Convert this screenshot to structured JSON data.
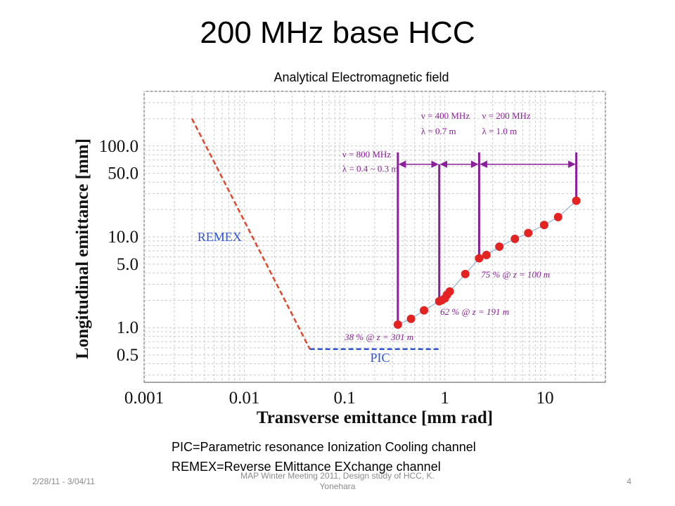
{
  "slide": {
    "title": "200 MHz base HCC",
    "subtitle": "Analytical Electromagnetic field",
    "footnote_1": "PIC=Parametric resonance Ionization Cooling channel",
    "footnote_2": "REMEX=Reverse EMittance EXchange channel",
    "footer_date": "2/28/11 - 3/04/11",
    "footer_center": "MAP Winter Meeting 2011, Design study of HCC, K. Yonehara",
    "page_number": "4"
  },
  "chart_data": {
    "type": "scatter",
    "xlabel": "Transverse emittance [mm rad]",
    "ylabel": "Longitudinal emittance [mm]",
    "xscale": "log",
    "yscale": "log",
    "xlim": [
      0.001,
      40
    ],
    "ylim": [
      0.25,
      400
    ],
    "grid": true,
    "x_tick_labels": [
      "0.001",
      "0.01",
      "0.1",
      "1",
      "10"
    ],
    "x_tick_values": [
      0.001,
      0.01,
      0.1,
      1,
      10
    ],
    "y_tick_labels": [
      "0.5",
      "1.0",
      "5.0",
      "10.0",
      "50.0",
      "100.0"
    ],
    "y_tick_values": [
      0.5,
      1.0,
      5.0,
      10.0,
      50.0,
      100.0
    ],
    "series": [
      {
        "name": "REMEX",
        "style": "dashed",
        "color": "#e8452a",
        "x": [
          0.003,
          0.045
        ],
        "y": [
          200,
          0.58
        ]
      },
      {
        "name": "PIC",
        "style": "dashed",
        "color": "#2f55d4",
        "x": [
          0.045,
          0.9
        ],
        "y": [
          0.58,
          0.58
        ]
      },
      {
        "name": "",
        "style": "markers",
        "color": "#e32222",
        "x": [
          0.34,
          0.46,
          0.62,
          0.88,
          0.93,
          1.0,
          1.05,
          1.12,
          1.6,
          2.2,
          2.6,
          3.5,
          5.0,
          6.8,
          9.8,
          13.5,
          20.5
        ],
        "y": [
          1.08,
          1.25,
          1.55,
          1.95,
          2.0,
          2.1,
          2.3,
          2.5,
          3.9,
          5.8,
          6.3,
          7.8,
          9.5,
          11.0,
          13.5,
          16.5,
          25.0
        ]
      }
    ],
    "marker_lines": [
      {
        "x": 0.34,
        "y_top": 85
      },
      {
        "x": 0.88,
        "y_top": 63
      },
      {
        "x": 2.2,
        "y_top": 85
      },
      {
        "x": 20.5,
        "y_top": 85
      }
    ],
    "brackets": [
      {
        "x1": 0.34,
        "x2": 0.88,
        "y": 63
      },
      {
        "x1": 0.88,
        "x2": 2.2,
        "y": 63
      },
      {
        "x1": 2.2,
        "x2": 20.5,
        "y": 63
      }
    ],
    "annotations": [
      {
        "name": "remex-label",
        "text": "REMEX",
        "x": 0.0034,
        "y": 9.0,
        "color": "#2f55d4",
        "style": "normal"
      },
      {
        "name": "pic-label",
        "text": "PIC",
        "x": 0.18,
        "y": 0.42,
        "color": "#2f55d4",
        "style": "normal"
      },
      {
        "name": "region-label-800-nu",
        "text": "ν = 800 MHz",
        "x": 0.095,
        "y": 75,
        "color": "#8b1e9b",
        "style": "normal"
      },
      {
        "name": "region-label-800-lambda",
        "text": "λ = 0.4 ~ 0.3 m",
        "x": 0.095,
        "y": 52,
        "color": "#8b1e9b",
        "style": "normal"
      },
      {
        "name": "region-label-400-nu",
        "text": "ν = 400 MHz",
        "x": 0.58,
        "y": 200,
        "color": "#8b1e9b",
        "style": "normal"
      },
      {
        "name": "region-label-400-lambda",
        "text": "λ = 0.7 m",
        "x": 0.58,
        "y": 135,
        "color": "#8b1e9b",
        "style": "normal"
      },
      {
        "name": "region-label-200-nu",
        "text": "ν = 200 MHz",
        "x": 2.35,
        "y": 200,
        "color": "#8b1e9b",
        "style": "normal"
      },
      {
        "name": "region-label-200-lambda",
        "text": "λ = 1.0 m",
        "x": 2.35,
        "y": 135,
        "color": "#8b1e9b",
        "style": "normal"
      },
      {
        "name": "efficiency-label-38",
        "text": "38 % @ z = 301 m",
        "x": 0.1,
        "y": 0.73,
        "color": "#8b1e9b",
        "style": "italic"
      },
      {
        "name": "efficiency-label-62",
        "text": "62 % @ z = 191 m",
        "x": 0.9,
        "y": 1.38,
        "color": "#8b1e9b",
        "style": "italic"
      },
      {
        "name": "efficiency-label-75",
        "text": "75 % @ z = 100 m",
        "x": 2.3,
        "y": 3.55,
        "color": "#8b1e9b",
        "style": "italic"
      }
    ]
  }
}
